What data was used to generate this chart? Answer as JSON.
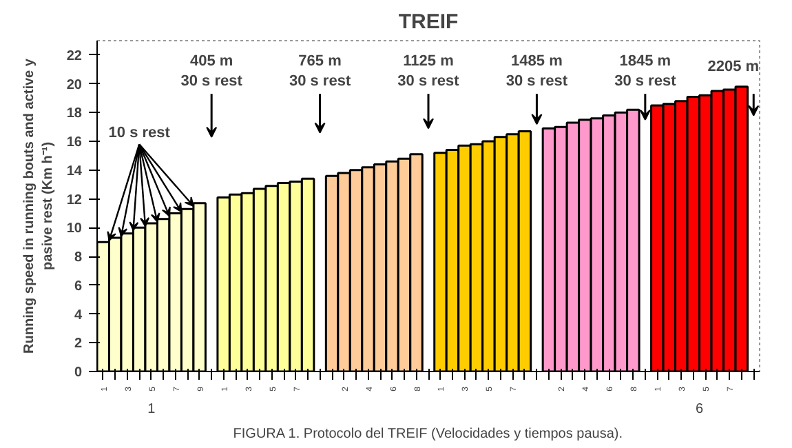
{
  "chart_data": {
    "type": "bar",
    "title": "TREIF",
    "ylabel": "Running speed in running bouts and active y\npasive rest (Km h⁻¹)",
    "categories": [
      "1",
      null,
      "3",
      null,
      "5",
      null,
      "7",
      null,
      "9",
      null,
      "1",
      null,
      "3",
      null,
      "5",
      null,
      "7",
      null,
      null,
      null,
      "2",
      null,
      "4",
      null,
      "6",
      null,
      "8",
      null,
      "1",
      null,
      "3",
      null,
      "5",
      null,
      "7",
      null,
      null,
      null,
      "2",
      null,
      "4",
      null,
      "6",
      null,
      "8",
      null,
      "1",
      null,
      "3",
      null,
      "5",
      null,
      "7",
      null,
      null
    ],
    "series": [
      {
        "color": "#ffffcc",
        "values": [
          9.0,
          9.3,
          9.6,
          10.0,
          10.3,
          10.6,
          11.0,
          11.3,
          11.7,
          null,
          null,
          null,
          null,
          null,
          null,
          null,
          null,
          null,
          null,
          null,
          null,
          null,
          null,
          null,
          null,
          null,
          null,
          null,
          null,
          null,
          null,
          null,
          null,
          null,
          null,
          null,
          null,
          null,
          null,
          null,
          null,
          null,
          null,
          null,
          null,
          null,
          null,
          null,
          null,
          null,
          null,
          null,
          null,
          null,
          null
        ]
      },
      {
        "color": "#ffff99",
        "values": [
          null,
          null,
          null,
          null,
          null,
          null,
          null,
          null,
          null,
          null,
          12.1,
          12.3,
          12.4,
          12.7,
          12.9,
          13.1,
          13.2,
          13.4,
          null,
          null,
          null,
          null,
          null,
          null,
          null,
          null,
          null,
          null,
          null,
          null,
          null,
          null,
          null,
          null,
          null,
          null,
          null,
          null,
          null,
          null,
          null,
          null,
          null,
          null,
          null,
          null,
          null,
          null,
          null,
          null,
          null,
          null,
          null,
          null,
          null
        ]
      },
      {
        "color": "#ffcc99",
        "values": [
          null,
          null,
          null,
          null,
          null,
          null,
          null,
          null,
          null,
          null,
          null,
          null,
          null,
          null,
          null,
          null,
          null,
          null,
          null,
          13.6,
          13.8,
          14.0,
          14.2,
          14.4,
          14.6,
          14.8,
          15.1,
          null,
          null,
          null,
          null,
          null,
          null,
          null,
          null,
          null,
          null,
          null,
          null,
          null,
          null,
          null,
          null,
          null,
          null,
          null,
          null,
          null,
          null,
          null,
          null,
          null,
          null,
          null,
          null
        ]
      },
      {
        "color": "#ffcc00",
        "values": [
          null,
          null,
          null,
          null,
          null,
          null,
          null,
          null,
          null,
          null,
          null,
          null,
          null,
          null,
          null,
          null,
          null,
          null,
          null,
          null,
          null,
          null,
          null,
          null,
          null,
          null,
          null,
          null,
          15.2,
          15.4,
          15.7,
          15.8,
          16.0,
          16.3,
          16.5,
          16.7,
          null,
          null,
          null,
          null,
          null,
          null,
          null,
          null,
          null,
          null,
          null,
          null,
          null,
          null,
          null,
          null,
          null,
          null,
          null
        ]
      },
      {
        "color": "#ff99cc",
        "values": [
          null,
          null,
          null,
          null,
          null,
          null,
          null,
          null,
          null,
          null,
          null,
          null,
          null,
          null,
          null,
          null,
          null,
          null,
          null,
          null,
          null,
          null,
          null,
          null,
          null,
          null,
          null,
          null,
          null,
          null,
          null,
          null,
          null,
          null,
          null,
          null,
          null,
          16.9,
          17.0,
          17.3,
          17.5,
          17.6,
          17.8,
          18.0,
          18.2,
          null,
          null,
          null,
          null,
          null,
          null,
          null,
          null,
          null,
          null
        ]
      },
      {
        "color": "#ff0000",
        "values": [
          null,
          null,
          null,
          null,
          null,
          null,
          null,
          null,
          null,
          null,
          null,
          null,
          null,
          null,
          null,
          null,
          null,
          null,
          null,
          null,
          null,
          null,
          null,
          null,
          null,
          null,
          null,
          null,
          null,
          null,
          null,
          null,
          null,
          null,
          null,
          null,
          null,
          null,
          null,
          null,
          null,
          null,
          null,
          null,
          null,
          null,
          18.5,
          18.6,
          18.8,
          19.1,
          19.2,
          19.5,
          19.6,
          19.8,
          null
        ]
      }
    ],
    "ylim": [
      0,
      23
    ],
    "yticks": [
      0,
      2,
      4,
      6,
      8,
      10,
      12,
      14,
      16,
      18,
      20,
      22
    ],
    "grid": false,
    "annotations": [
      {
        "text": "10 s rest",
        "y": 10.3
      },
      "405 m\n30 s rest",
      "765 m\n30 s rest",
      "1125 m\n30 s rest",
      "1485 m\n30 s rest",
      "1845 m\n30 s rest",
      "2205 m",
      "1",
      "6",
      "FIGURA 1. Protocolo del TREIF (Velocidades y tiempos pausa)."
    ]
  }
}
